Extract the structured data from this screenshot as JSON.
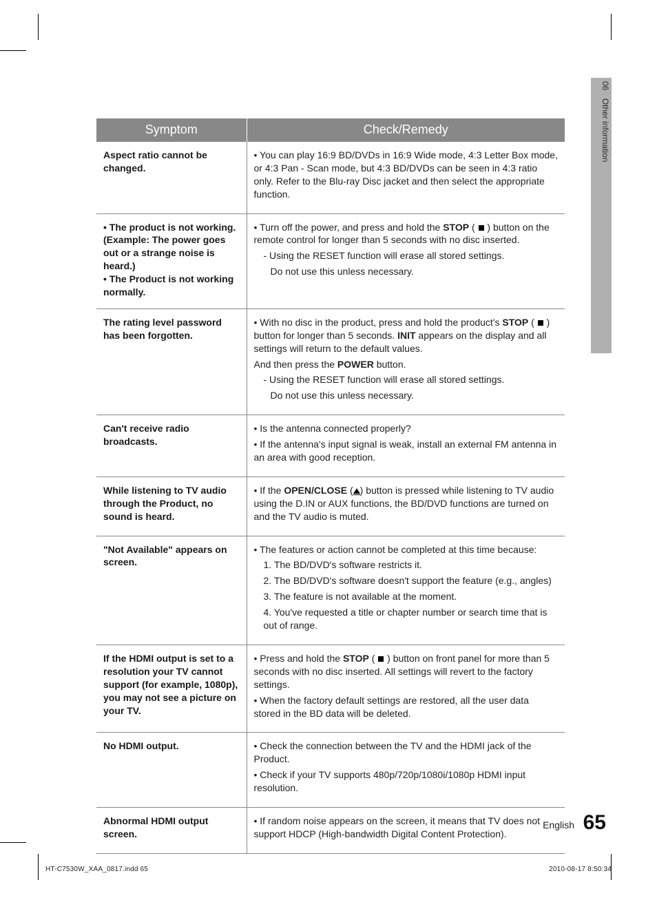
{
  "section": {
    "number": "06",
    "title": "Other information"
  },
  "table": {
    "headers": {
      "symptom": "Symptom",
      "remedy": "Check/Remedy"
    },
    "rows": [
      {
        "symptom": "Aspect ratio cannot be changed.",
        "remedy_lines": [
          "• You can play 16:9 BD/DVDs in 16:9 Wide mode, 4:3 Letter Box mode, or 4:3 Pan - Scan mode, but 4:3 BD/DVDs can be seen in 4:3 ratio only. Refer to the Blu-ray Disc jacket and then select the appropriate function."
        ]
      },
      {
        "symptom_lines": [
          "• The product is not working. (Example: The power goes out or a strange noise is heard.)",
          "• The Product is not working normally."
        ],
        "remedy_html": "r2"
      },
      {
        "symptom": "The rating level password has been forgotten.",
        "remedy_html": "r3"
      },
      {
        "symptom": "Can't receive radio broadcasts.",
        "remedy_lines": [
          "• Is the antenna connected properly?",
          "• If the antenna's input signal is weak, install an external FM antenna in an area with good reception."
        ]
      },
      {
        "symptom": "While listening to TV audio through the Product, no sound is heard.",
        "remedy_html": "r5"
      },
      {
        "symptom": "\"Not Available\" appears on screen.",
        "remedy_lines": [
          "• The features or action cannot be completed at this time because:",
          "1. The BD/DVD's software restricts it.",
          "2. The BD/DVD's software doesn't support the feature (e.g., angles)",
          "3. The feature is not available at the moment.",
          "4. You've requested a title or chapter number or search time that is out of range."
        ],
        "indent_from": 1
      },
      {
        "symptom": "If the HDMI output is set to a resolution your TV cannot support (for example, 1080p), you may not see a picture on your TV.",
        "remedy_html": "r7"
      },
      {
        "symptom": "No HDMI output.",
        "remedy_lines": [
          "• Check the connection between the TV and the HDMI jack of the Product.",
          "• Check if your TV supports 480p/720p/1080i/1080p HDMI input resolution."
        ]
      },
      {
        "symptom": "Abnormal HDMI output screen.",
        "remedy_lines": [
          "• If random noise appears on the screen, it means that TV does not support HDCP (High-bandwidth Digital Content Protection)."
        ]
      }
    ],
    "remedy_fragments": {
      "r2": {
        "pre": "• Turn off the power, and press and hold the ",
        "stop_bold": "STOP",
        "post_stop": " button on the remote control for longer than 5 seconds with no disc inserted.",
        "sub1": "- Using the RESET function will erase all stored settings.",
        "sub2": "Do not use this unless necessary."
      },
      "r3": {
        "pre": "• With no disc in the product, press and hold the product's ",
        "stop_bold": "STOP",
        "post_stop": " button for longer than 5 seconds. ",
        "init_bold": "INIT",
        "post_init": " appears on the display and all settings will return to the default values.",
        "line2a": "And then press the ",
        "power_bold": "POWER",
        "line2b": " button.",
        "sub1": "- Using the RESET function will erase all stored settings.",
        "sub2": "Do not use this unless necessary."
      },
      "r5": {
        "pre": "• If the ",
        "open_bold": "OPEN/CLOSE",
        "post": " button is pressed while listening to TV audio using the D.IN or AUX functions, the BD/DVD functions are turned on and the TV audio is muted."
      },
      "r7": {
        "pre": "• Press and hold the ",
        "stop_bold": "STOP",
        "post_stop": " button on front panel for more than 5 seconds with no disc inserted. All settings will revert to the factory settings.",
        "line2": "• When the factory default settings are restored, all the user data stored in the BD data will be deleted."
      }
    }
  },
  "footer": {
    "language": "English",
    "page_number": "65",
    "file": "HT-C7530W_XAA_0817.indd   65",
    "timestamp": "2010-08-17   8:50:34"
  },
  "colors": {
    "header_bg": "#888888",
    "header_text": "#ffffff",
    "side_tab_bg": "#b0b0b0",
    "border": "#888888"
  }
}
